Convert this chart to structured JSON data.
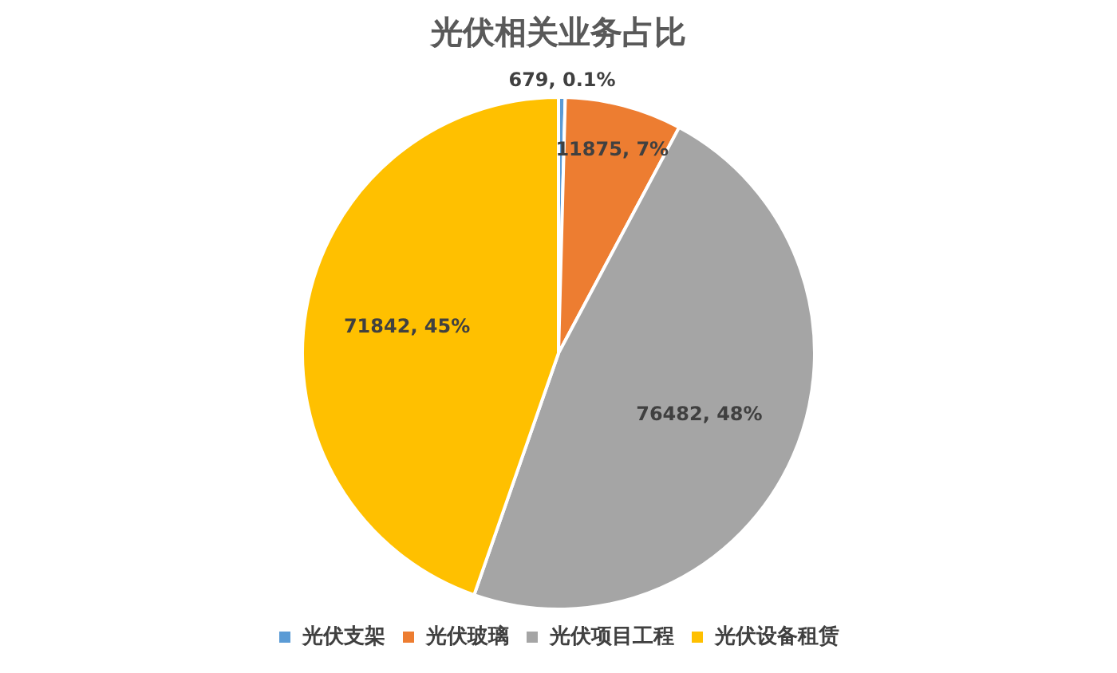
{
  "chart_data": {
    "type": "pie",
    "title": "光伏相关业务占比",
    "categories": [
      "光伏支架",
      "光伏玻璃",
      "光伏项目工程",
      "光伏设备租赁"
    ],
    "values": [
      679,
      11875,
      76482,
      71842
    ],
    "colors": [
      "#5b9bd5",
      "#ed7d31",
      "#a5a5a5",
      "#ffc000"
    ],
    "value_labels": [
      "679, 0.1%",
      "11875, 7%",
      "76482, 48%",
      "71842, 45%"
    ],
    "legend": "bottom"
  }
}
